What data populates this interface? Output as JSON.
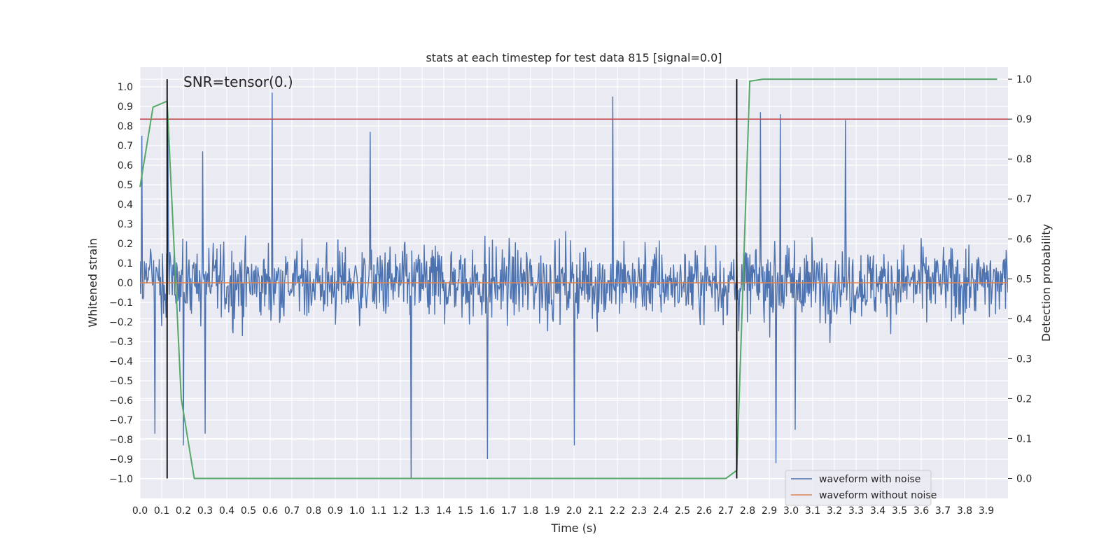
{
  "chart_data": {
    "type": "line",
    "title": "stats at each timestep for test data 815 [signal=0.0]",
    "xlabel": "Time (s)",
    "ylabel": "Whitened strain",
    "y2label": "Detection probability",
    "xlim": [
      0.0,
      4.0
    ],
    "ylim": [
      -1.1,
      1.1
    ],
    "y2lim": [
      -0.05,
      1.03
    ],
    "x_ticks": [
      "0.0",
      "0.1",
      "0.2",
      "0.3",
      "0.4",
      "0.5",
      "0.6",
      "0.7",
      "0.8",
      "0.9",
      "1.0",
      "1.1",
      "1.2",
      "1.3",
      "1.4",
      "1.5",
      "1.6",
      "1.7",
      "1.8",
      "1.9",
      "2.0",
      "2.1",
      "2.2",
      "2.3",
      "2.4",
      "2.5",
      "2.6",
      "2.7",
      "2.8",
      "2.9",
      "3.0",
      "3.1",
      "3.2",
      "3.3",
      "3.4",
      "3.5",
      "3.6",
      "3.7",
      "3.8",
      "3.9"
    ],
    "y_ticks": [
      "1.0",
      "0.9",
      "0.8",
      "0.7",
      "0.6",
      "0.5",
      "0.4",
      "0.3",
      "0.2",
      "0.1",
      "0.0",
      "−0.1",
      "−0.2",
      "−0.3",
      "−0.4",
      "−0.5",
      "−0.6",
      "−0.7",
      "−0.8",
      "−0.9",
      "−1.0"
    ],
    "y2_ticks": [
      "1.0",
      "0.9",
      "0.8",
      "0.7",
      "0.6",
      "0.5",
      "0.4",
      "0.3",
      "0.2",
      "0.1",
      "0.0"
    ],
    "annotation": "SNR=tensor(0.)",
    "grid": true,
    "legend_position": "bottom-right",
    "threshold": {
      "y2": 0.9,
      "color": "#c44e52"
    },
    "vlines_x": [
      0.125,
      2.75
    ],
    "series": [
      {
        "name": "waveform with noise",
        "axis": "left",
        "color": "#4c72b0",
        "noise_envelope": {
          "positive_peaks": [
            [
              0.01,
              0.75
            ],
            [
              0.13,
              0.79
            ],
            [
              0.2,
              0.78
            ],
            [
              0.29,
              0.67
            ],
            [
              0.61,
              0.97
            ],
            [
              1.06,
              0.77
            ],
            [
              2.18,
              0.95
            ],
            [
              2.86,
              0.87
            ],
            [
              2.95,
              0.86
            ],
            [
              3.25,
              0.83
            ]
          ],
          "negative_peaks": [
            [
              0.07,
              -0.77
            ],
            [
              0.2,
              -0.83
            ],
            [
              0.3,
              -0.77
            ],
            [
              1.25,
              -1.0
            ],
            [
              1.6,
              -0.9
            ],
            [
              2.0,
              -0.83
            ],
            [
              2.93,
              -0.92
            ],
            [
              3.02,
              -0.75
            ]
          ]
        }
      },
      {
        "name": "waveform without noise",
        "axis": "left",
        "color": "#dd8452",
        "x": [
          0.0,
          4.0
        ],
        "values": [
          0.0,
          0.0
        ]
      },
      {
        "name": "",
        "axis": "right",
        "color": "#55a868",
        "x": [
          0.0,
          0.06,
          0.125,
          0.19,
          0.25,
          0.3,
          1.0,
          2.0,
          2.7,
          2.75,
          2.81,
          2.87,
          3.95
        ],
        "values": [
          0.73,
          0.93,
          0.945,
          0.2,
          0.0,
          0.0,
          0.0,
          0.0,
          0.0,
          0.02,
          0.995,
          1.0,
          1.0
        ]
      }
    ]
  }
}
